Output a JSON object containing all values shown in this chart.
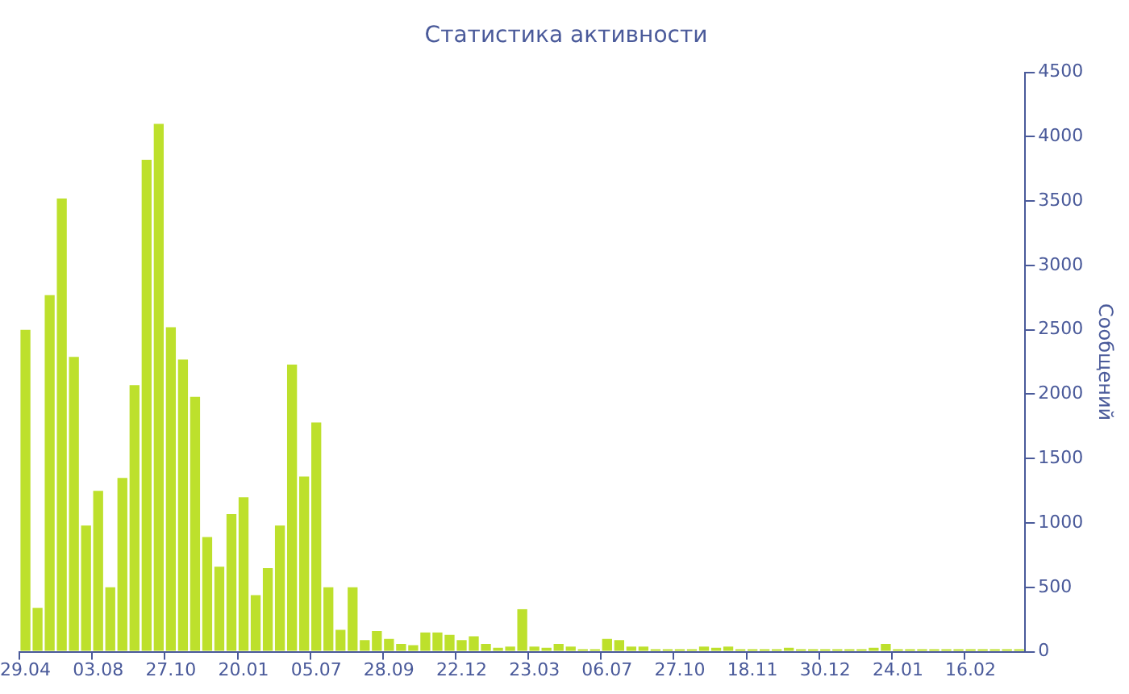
{
  "chart_data": {
    "type": "bar",
    "title": "Статистика активности",
    "ylabel": "Сообщений",
    "categories": [
      "29.04",
      null,
      null,
      null,
      null,
      null,
      "03.08",
      null,
      null,
      null,
      null,
      null,
      "27.10",
      null,
      null,
      null,
      null,
      null,
      "20.01",
      null,
      null,
      null,
      null,
      null,
      "05.07",
      null,
      null,
      null,
      null,
      null,
      "28.09",
      null,
      null,
      null,
      null,
      null,
      "22.12",
      null,
      null,
      null,
      null,
      null,
      "23.03",
      null,
      null,
      null,
      null,
      null,
      "06.07",
      null,
      null,
      null,
      null,
      null,
      "27.10",
      null,
      null,
      null,
      null,
      null,
      "18.11",
      null,
      null,
      null,
      null,
      null,
      "30.12",
      null,
      null,
      null,
      null,
      null,
      "24.01",
      null,
      null,
      null,
      null,
      null,
      "16.02",
      null,
      null,
      null,
      null
    ],
    "values": [
      2500,
      340,
      2770,
      3520,
      2290,
      980,
      1250,
      500,
      1350,
      2070,
      3820,
      4100,
      2520,
      2270,
      1980,
      890,
      660,
      1070,
      1200,
      440,
      650,
      980,
      2230,
      1360,
      1780,
      500,
      170,
      500,
      90,
      160,
      100,
      60,
      50,
      150,
      150,
      130,
      90,
      120,
      60,
      30,
      40,
      330,
      40,
      30,
      60,
      40,
      20,
      20,
      100,
      90,
      40,
      40,
      20,
      20,
      20,
      20,
      40,
      30,
      40,
      20,
      20,
      20,
      20,
      30,
      20,
      20,
      20,
      20,
      20,
      20,
      30,
      60,
      20,
      20,
      20,
      20,
      20,
      20,
      20,
      20,
      20,
      20,
      20
    ],
    "color": "#bde02c",
    "ylim": [
      0,
      4500
    ],
    "yticks": [
      0,
      500,
      1000,
      1500,
      2000,
      2500,
      3000,
      3500,
      4000,
      4500
    ],
    "grid": false,
    "legend": false
  }
}
